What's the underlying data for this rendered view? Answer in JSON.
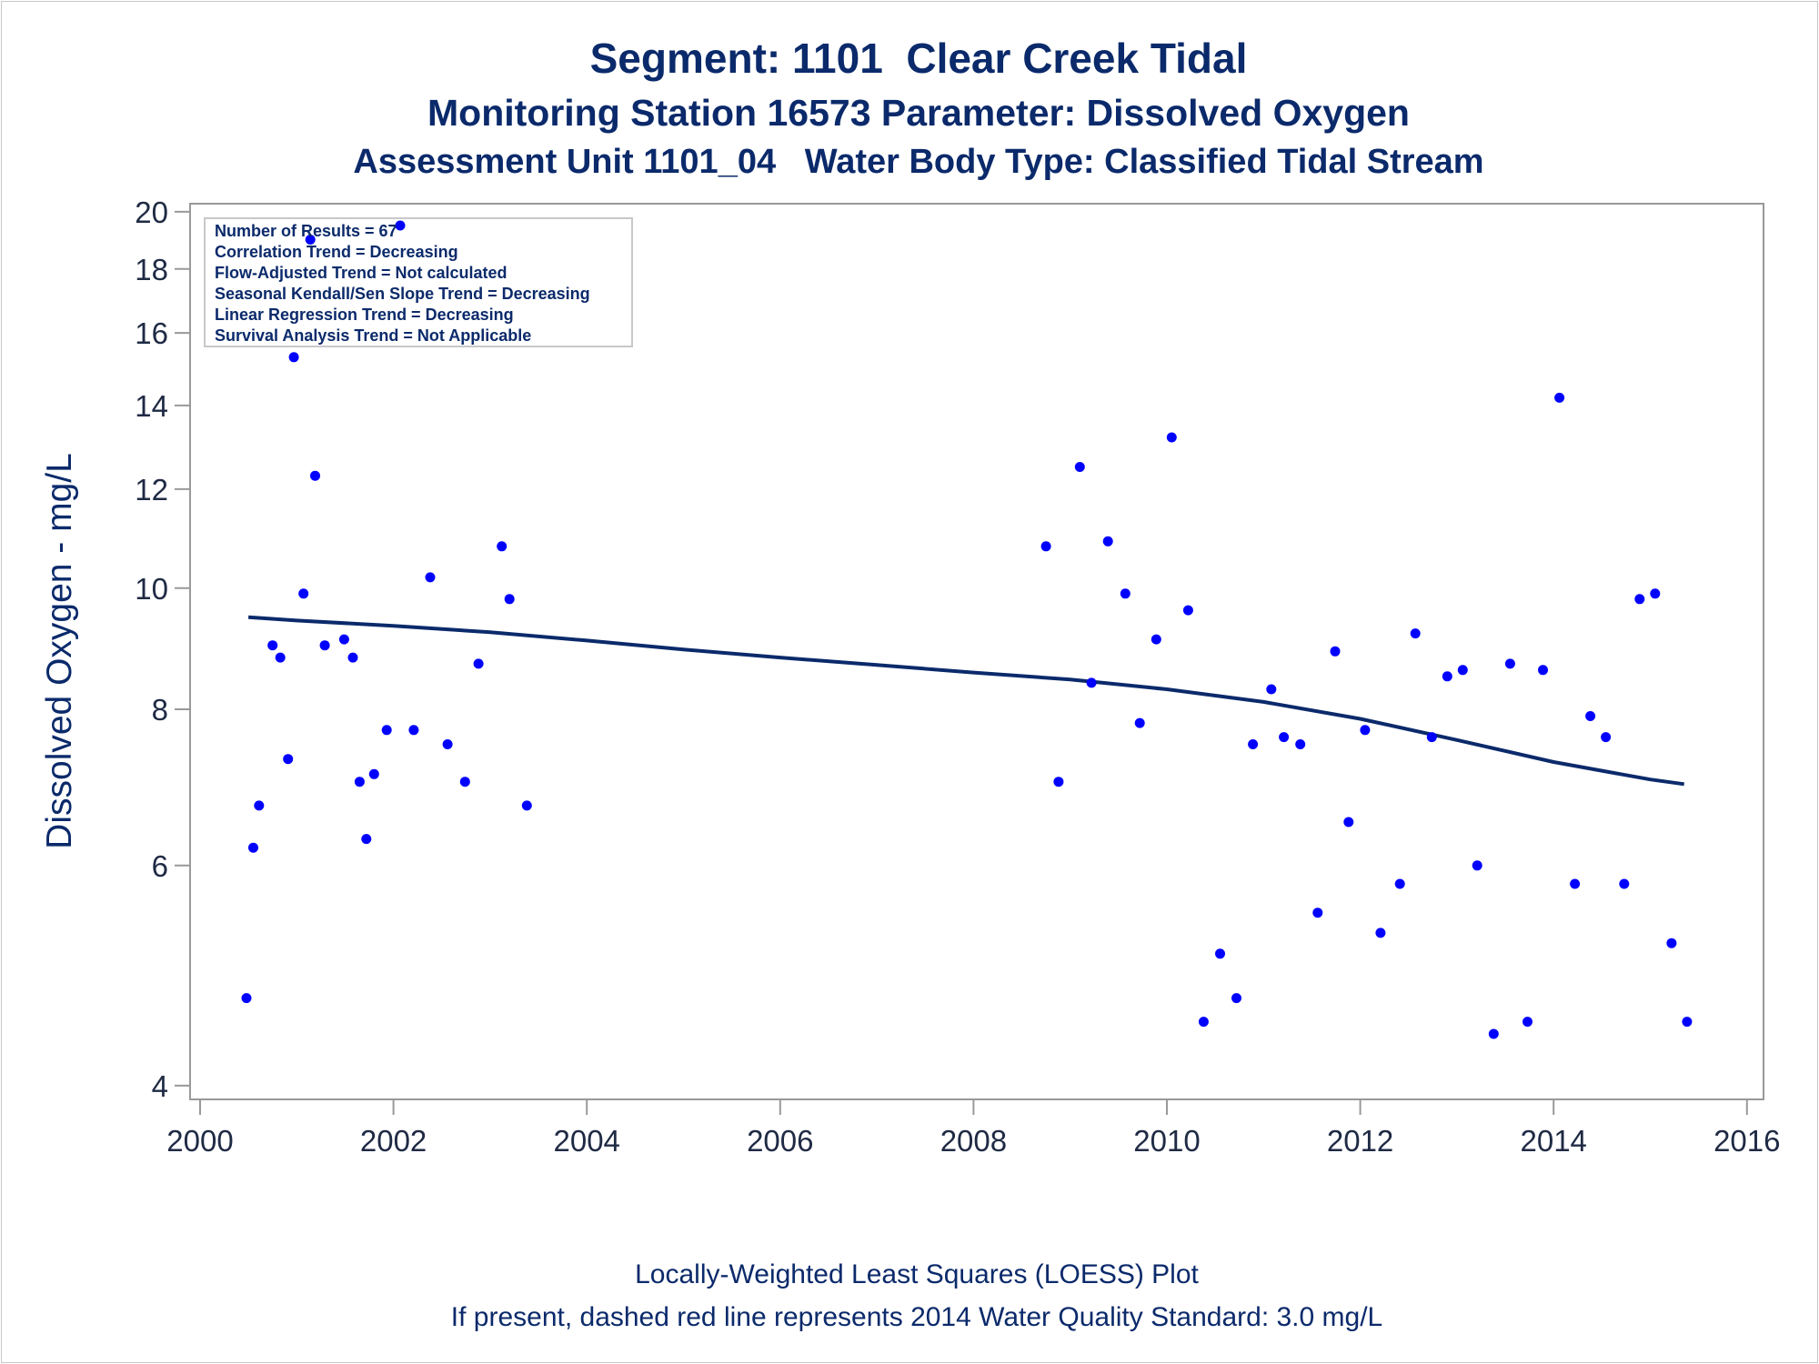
{
  "chart_data": {
    "type": "scatter",
    "title": "Segment: 1101  Clear Creek Tidal",
    "subtitle": "Monitoring Station 16573 Parameter: Dissolved Oxygen",
    "subtitle2": "Assessment Unit 1101_04   Water Body Type: Classified Tidal Stream",
    "xlabel": "",
    "ylabel": "Dissolved Oxygen - mg/L",
    "y_scale": "log",
    "xlim": [
      2000,
      2016
    ],
    "ylim": [
      3.9,
      20.3
    ],
    "x_ticks": [
      2000,
      2002,
      2004,
      2006,
      2008,
      2010,
      2012,
      2014,
      2016
    ],
    "y_ticks": [
      4,
      6,
      8,
      10,
      12,
      14,
      16,
      18,
      20
    ],
    "grid": false,
    "inset_lines": [
      "Number of Results = 67",
      "Correlation Trend = Decreasing",
      "Flow-Adjusted Trend = Not calculated",
      "Seasonal Kendall/Sen Slope Trend = Decreasing",
      "Linear Regression Trend = Decreasing",
      "Survival Analysis Trend = Not Applicable"
    ],
    "footnote1": "Locally-Weighted Least Squares (LOESS) Plot",
    "footnote2": "If present, dashed red line represents 2014 Water Quality Standard: 3.0 mg/L",
    "colors": {
      "points": "#0000ff",
      "loess": "#0b2a6b",
      "text": "#0b2a6b"
    },
    "series": [
      {
        "kind": "points",
        "points": [
          [
            2000.48,
            4.7
          ],
          [
            2000.55,
            6.2
          ],
          [
            2000.61,
            6.7
          ],
          [
            2000.75,
            9.0
          ],
          [
            2000.83,
            8.8
          ],
          [
            2000.91,
            7.3
          ],
          [
            2000.97,
            15.3
          ],
          [
            2001.07,
            9.9
          ],
          [
            2001.14,
            19.0
          ],
          [
            2001.19,
            12.3
          ],
          [
            2001.29,
            9.0
          ],
          [
            2001.49,
            9.1
          ],
          [
            2001.58,
            8.8
          ],
          [
            2001.65,
            7.0
          ],
          [
            2001.72,
            6.3
          ],
          [
            2001.8,
            7.1
          ],
          [
            2001.93,
            7.7
          ],
          [
            2002.07,
            19.5
          ],
          [
            2002.21,
            7.7
          ],
          [
            2002.38,
            10.2
          ],
          [
            2002.56,
            7.5
          ],
          [
            2002.74,
            7.0
          ],
          [
            2002.88,
            8.7
          ],
          [
            2003.12,
            10.8
          ],
          [
            2003.2,
            9.8
          ],
          [
            2003.38,
            6.7
          ],
          [
            2008.75,
            10.8
          ],
          [
            2008.88,
            7.0
          ],
          [
            2009.1,
            12.5
          ],
          [
            2009.22,
            8.4
          ],
          [
            2009.39,
            10.9
          ],
          [
            2009.57,
            9.9
          ],
          [
            2009.72,
            7.8
          ],
          [
            2009.89,
            9.1
          ],
          [
            2010.05,
            13.2
          ],
          [
            2010.22,
            9.6
          ],
          [
            2010.38,
            4.5
          ],
          [
            2010.55,
            5.1
          ],
          [
            2010.72,
            4.7
          ],
          [
            2010.89,
            7.5
          ],
          [
            2011.08,
            8.3
          ],
          [
            2011.21,
            7.6
          ],
          [
            2011.38,
            7.5
          ],
          [
            2011.56,
            5.5
          ],
          [
            2011.74,
            8.9
          ],
          [
            2011.88,
            6.5
          ],
          [
            2012.05,
            7.7
          ],
          [
            2012.21,
            5.3
          ],
          [
            2012.41,
            5.8
          ],
          [
            2012.57,
            9.2
          ],
          [
            2012.74,
            7.6
          ],
          [
            2012.9,
            8.5
          ],
          [
            2013.06,
            8.6
          ],
          [
            2013.21,
            6.0
          ],
          [
            2013.38,
            4.4
          ],
          [
            2013.55,
            8.7
          ],
          [
            2013.73,
            4.5
          ],
          [
            2013.89,
            8.6
          ],
          [
            2014.06,
            14.2
          ],
          [
            2014.22,
            5.8
          ],
          [
            2014.38,
            7.9
          ],
          [
            2014.54,
            7.6
          ],
          [
            2014.73,
            5.8
          ],
          [
            2014.89,
            9.8
          ],
          [
            2015.05,
            9.9
          ],
          [
            2015.22,
            5.2
          ],
          [
            2015.38,
            4.5
          ]
        ]
      },
      {
        "kind": "loess",
        "points": [
          [
            2000.5,
            9.48
          ],
          [
            2001.0,
            9.42
          ],
          [
            2002.0,
            9.33
          ],
          [
            2003.0,
            9.22
          ],
          [
            2004.0,
            9.08
          ],
          [
            2005.0,
            8.93
          ],
          [
            2006.0,
            8.8
          ],
          [
            2007.0,
            8.68
          ],
          [
            2008.0,
            8.56
          ],
          [
            2009.0,
            8.45
          ],
          [
            2010.0,
            8.3
          ],
          [
            2011.0,
            8.11
          ],
          [
            2012.0,
            7.86
          ],
          [
            2013.0,
            7.56
          ],
          [
            2014.0,
            7.26
          ],
          [
            2015.0,
            7.03
          ],
          [
            2015.35,
            6.97
          ]
        ]
      }
    ]
  }
}
